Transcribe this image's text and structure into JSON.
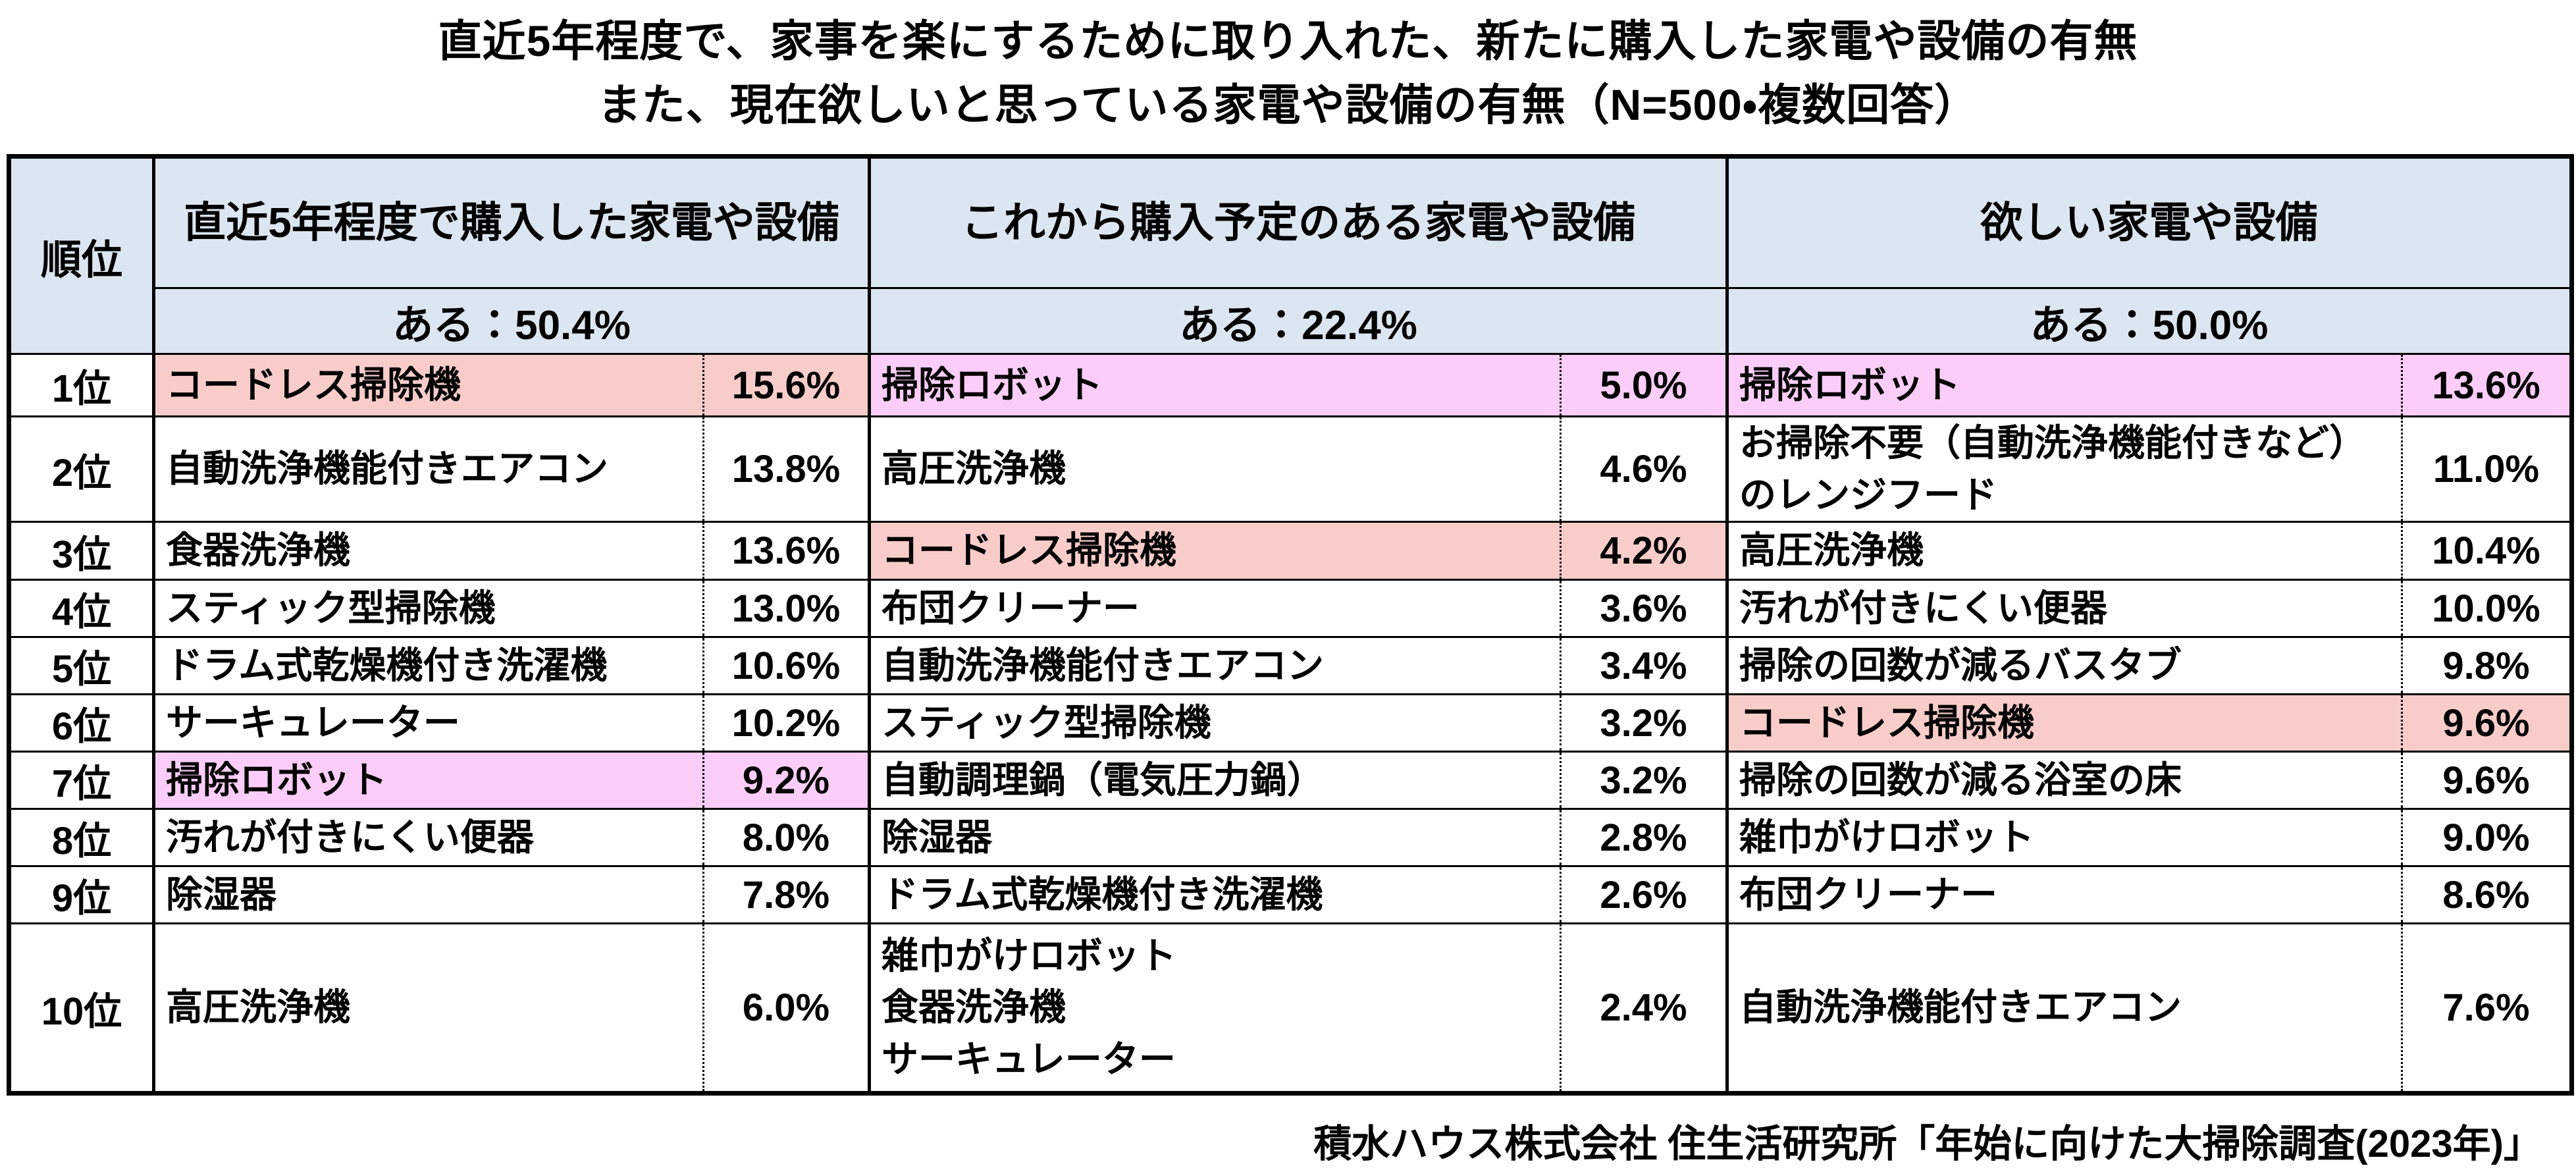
{
  "title": {
    "line1": "直近5年程度で、家事を楽にするために取り入れた、新たに購入した家電や設備の有無",
    "line2": "また、現在欲しいと思っている家電や設備の有無（N=500・複数回答）"
  },
  "rank_header": "順位",
  "chart_data": {
    "type": "table",
    "title": "直近5年程度で、家事を楽にするために取り入れた、新たに購入した家電や設備の有無 また、現在欲しいと思っている家電や設備の有無（N=500・複数回答）",
    "n": 500,
    "columns": [
      {
        "title": "直近5年程度で購入した家電や設備",
        "subtitle": "ある：50.4%",
        "have_pct": 50.4,
        "items": [
          {
            "rank": "1位",
            "name": "コードレス掃除機",
            "pct": "15.6%",
            "highlight": "salmon"
          },
          {
            "rank": "2位",
            "name": "自動洗浄機能付きエアコン",
            "pct": "13.8%",
            "highlight": null
          },
          {
            "rank": "3位",
            "name": "食器洗浄機",
            "pct": "13.6%",
            "highlight": null
          },
          {
            "rank": "4位",
            "name": "スティック型掃除機",
            "pct": "13.0%",
            "highlight": null
          },
          {
            "rank": "5位",
            "name": "ドラム式乾燥機付き洗濯機",
            "pct": "10.6%",
            "highlight": null
          },
          {
            "rank": "6位",
            "name": "サーキュレーター",
            "pct": "10.2%",
            "highlight": null
          },
          {
            "rank": "7位",
            "name": "掃除ロボット",
            "pct": "9.2%",
            "highlight": "magenta"
          },
          {
            "rank": "8位",
            "name": "汚れが付きにくい便器",
            "pct": "8.0%",
            "highlight": null
          },
          {
            "rank": "9位",
            "name": "除湿器",
            "pct": "7.8%",
            "highlight": null
          },
          {
            "rank": "10位",
            "name": "高圧洗浄機",
            "pct": "6.0%",
            "highlight": null
          }
        ]
      },
      {
        "title": "これから購入予定のある家電や設備",
        "subtitle": "ある：22.4%",
        "have_pct": 22.4,
        "items": [
          {
            "rank": "1位",
            "name": "掃除ロボット",
            "pct": "5.0%",
            "highlight": "magenta"
          },
          {
            "rank": "2位",
            "name": "高圧洗浄機",
            "pct": "4.6%",
            "highlight": null
          },
          {
            "rank": "3位",
            "name": "コードレス掃除機",
            "pct": "4.2%",
            "highlight": "salmon"
          },
          {
            "rank": "4位",
            "name": "布団クリーナー",
            "pct": "3.6%",
            "highlight": null
          },
          {
            "rank": "5位",
            "name": "自動洗浄機能付きエアコン",
            "pct": "3.4%",
            "highlight": null
          },
          {
            "rank": "6位",
            "name": "スティック型掃除機",
            "pct": "3.2%",
            "highlight": null
          },
          {
            "rank": "7位",
            "name": "自動調理鍋（電気圧力鍋）",
            "pct": "3.2%",
            "highlight": null
          },
          {
            "rank": "8位",
            "name": "除湿器",
            "pct": "2.8%",
            "highlight": null
          },
          {
            "rank": "9位",
            "name": "ドラム式乾燥機付き洗濯機",
            "pct": "2.6%",
            "highlight": null
          },
          {
            "rank": "10位",
            "name": "雑巾がけロボット\n食器洗浄機\nサーキュレーター",
            "pct": "2.4%",
            "highlight": null
          }
        ]
      },
      {
        "title": "欲しい家電や設備",
        "subtitle": "ある：50.0%",
        "have_pct": 50.0,
        "items": [
          {
            "rank": "1位",
            "name": "掃除ロボット",
            "pct": "13.6%",
            "highlight": "magenta"
          },
          {
            "rank": "2位",
            "name": "お掃除不要（自動洗浄機能付きなど）\nのレンジフード",
            "pct": "11.0%",
            "highlight": null
          },
          {
            "rank": "3位",
            "name": "高圧洗浄機",
            "pct": "10.4%",
            "highlight": null
          },
          {
            "rank": "4位",
            "name": "汚れが付きにくい便器",
            "pct": "10.0%",
            "highlight": null
          },
          {
            "rank": "5位",
            "name": "掃除の回数が減るバスタブ",
            "pct": "9.8%",
            "highlight": null
          },
          {
            "rank": "6位",
            "name": "コードレス掃除機",
            "pct": "9.6%",
            "highlight": "salmon"
          },
          {
            "rank": "7位",
            "name": "掃除の回数が減る浴室の床",
            "pct": "9.6%",
            "highlight": null
          },
          {
            "rank": "8位",
            "name": "雑巾がけロボット",
            "pct": "9.0%",
            "highlight": null
          },
          {
            "rank": "9位",
            "name": "布団クリーナー",
            "pct": "8.6%",
            "highlight": null
          },
          {
            "rank": "10位",
            "name": "自動洗浄機能付きエアコン",
            "pct": "7.6%",
            "highlight": null
          }
        ]
      }
    ],
    "source": "積水ハウス株式会社 住生活研究所「年始に向けた大掃除調査(2023年)」"
  },
  "colors": {
    "header_bg": "#dce6f1",
    "highlight_salmon": "#f8cdc9",
    "highlight_magenta": "#fccdf8"
  }
}
